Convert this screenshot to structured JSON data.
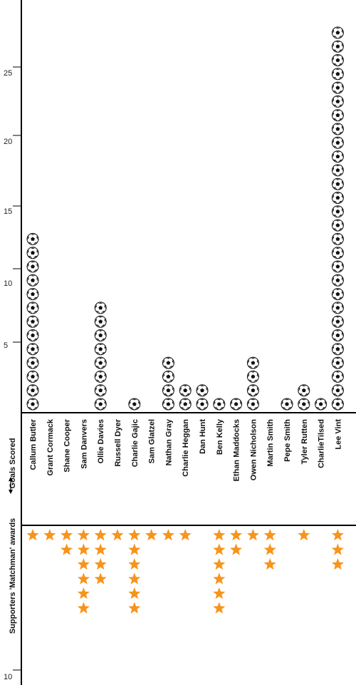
{
  "chart_data": {
    "type": "pictograph",
    "upper_axis_label": "Goals Scored",
    "lower_axis_label": "Supporters 'Matchman' awards",
    "goals_ticks": [
      "5",
      "10",
      "15",
      "20",
      "25"
    ],
    "awards_tick": "10",
    "categories": [
      "Callum Butler",
      "Grant Cormack",
      "Shane Cooper",
      "Sam Danvers",
      "Ollie Davies",
      "Russell Dyer",
      "Charlie Gajic",
      "Sam Glatzel",
      "Nathan Gray",
      "Charlie Heggan",
      "Dan Hunt",
      "Ben Kelly",
      "Ethan Maddocks",
      "Owen Nicholson",
      "Martin Smith",
      "Pepe Smith",
      "Tyler Rutten",
      "CharlieTilsed",
      "Lee Vint"
    ],
    "series": [
      {
        "name": "Goals Scored",
        "icon": "football-icon",
        "values": [
          13,
          0,
          0,
          0,
          8,
          0,
          1,
          0,
          4,
          2,
          2,
          1,
          1,
          4,
          0,
          1,
          2,
          1,
          28
        ]
      },
      {
        "name": "Supporters 'Matchman' awards",
        "icon": "star-icon",
        "color": "#f7941d",
        "values": [
          1,
          1,
          2,
          6,
          4,
          1,
          6,
          1,
          1,
          1,
          0,
          6,
          2,
          1,
          3,
          0,
          1,
          0,
          3
        ]
      }
    ]
  }
}
